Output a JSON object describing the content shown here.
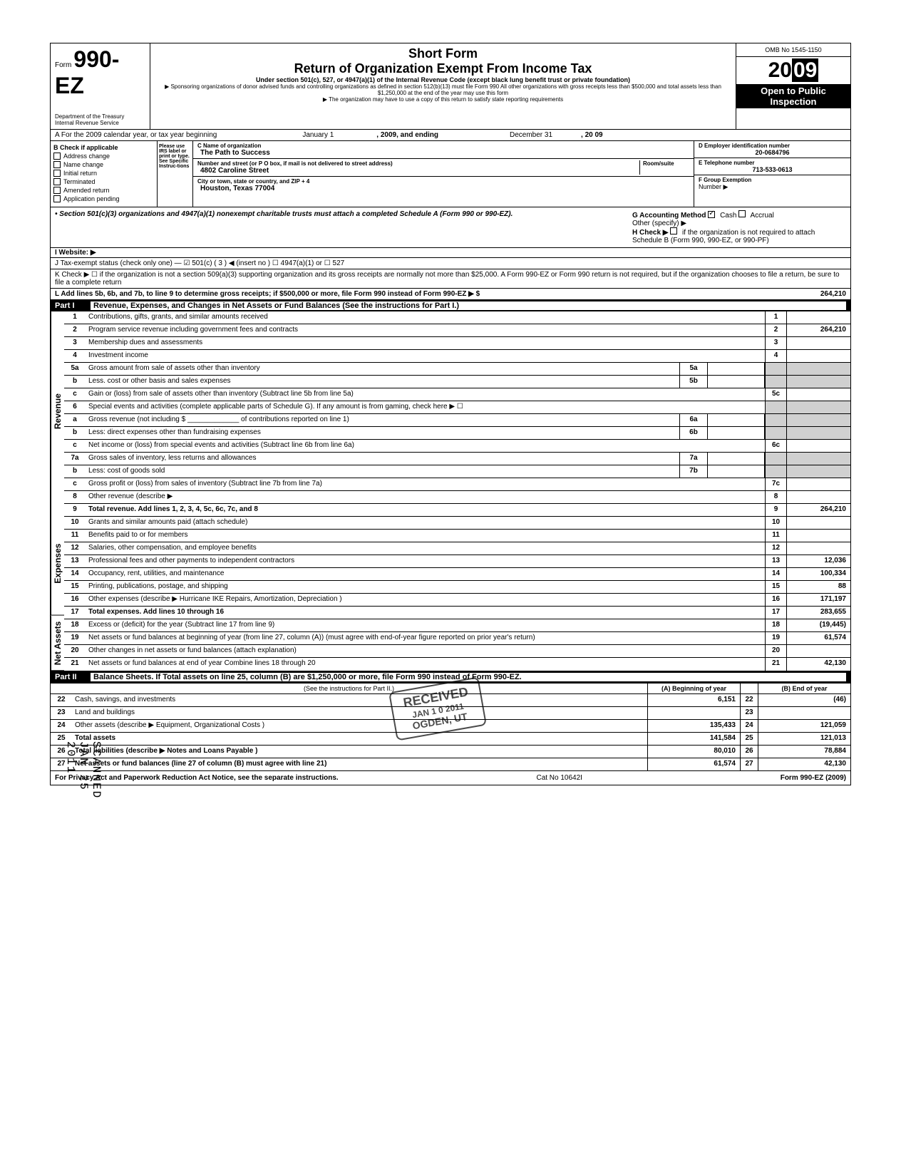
{
  "header": {
    "form_prefix": "Form",
    "form_number": "990-EZ",
    "dept": "Department of the Treasury",
    "irs": "Internal Revenue Service",
    "short_form": "Short Form",
    "title": "Return of Organization Exempt From Income Tax",
    "subtitle": "Under section 501(c), 527, or 4947(a)(1) of the Internal Revenue Code (except black lung benefit trust or private foundation)",
    "sponsor_text": "▶ Sponsoring organizations of donor advised funds and controlling organizations as defined in section 512(b)(13) must file Form 990  All other organizations with gross receipts less than $500,000 and total assets less than $1,250,000 at the end of the year may use this form",
    "copy_text": "▶ The organization may have to use a copy of this return to satisfy state reporting requirements",
    "omb": "OMB No 1545-1150",
    "year": "2009",
    "open": "Open to Public",
    "inspection": "Inspection"
  },
  "section_a": {
    "label": "A For the 2009 calendar year, or tax year beginning",
    "begin": "January 1",
    "mid": ", 2009, and ending",
    "end": "December 31",
    "end_year": ", 20   09"
  },
  "section_b": {
    "label": "B Check if applicable",
    "items": [
      "Address change",
      "Name change",
      "Initial return",
      "Terminated",
      "Amended return",
      "Application pending"
    ]
  },
  "please": "Please use IRS label or print or type. See Specific Instruc-tions",
  "section_c": {
    "name_label": "C Name of organization",
    "name": "The Path to Success",
    "addr_label": "Number and street (or P O  box, if mail is not delivered to street address)",
    "room": "Room/suite",
    "addr": "4802 Caroline Street",
    "city_label": "City or town, state or country, and ZIP + 4",
    "city": "Houston, Texas 77004"
  },
  "section_d": {
    "ein_label": "D Employer identification number",
    "ein": "20-0684796",
    "phone_label": "E Telephone number",
    "phone": "713-533-0613",
    "group_label": "F Group Exemption",
    "number": "Number ▶"
  },
  "section_501": {
    "text": "• Section 501(c)(3) organizations and 4947(a)(1) nonexempt charitable trusts must attach a completed Schedule A (Form 990 or 990-EZ).",
    "g_label": "G Accounting Method",
    "cash": "Cash",
    "accrual": "Accrual",
    "other": "Other (specify) ▶",
    "h_label": "H Check ▶",
    "h_text": "if the organization is not required to attach Schedule B (Form 990, 990-EZ, or 990-PF)"
  },
  "website": "I   Website: ▶",
  "line_j": "J  Tax-exempt status (check only one) — ☑ 501(c) (   3  ) ◀ (insert no )   ☐ 4947(a)(1) or   ☐ 527",
  "line_k": "K Check ▶ ☐    if the organization is not a section 509(a)(3) supporting organization and its gross receipts are normally not more than $25,000.  A Form 990-EZ or Form 990 return is not required,  but if the organization chooses to file a return, be sure to file a complete return",
  "line_l": {
    "text": "L  Add lines 5b, 6b, and 7b, to line 9 to determine gross receipts; if $500,000 or more, file Form 990 instead of Form 990-EZ   ▶  $",
    "amount": "264,210"
  },
  "part1": {
    "num": "Part I",
    "title": "Revenue, Expenses, and Changes in Net Assets or Fund Balances (See the instructions for Part I.)"
  },
  "revenue_label": "Revenue",
  "expenses_label": "Expenses",
  "netassets_label": "Net Assets",
  "lines": [
    {
      "n": "1",
      "d": "Contributions, gifts, grants, and similar amounts received",
      "rn": "1",
      "rv": ""
    },
    {
      "n": "2",
      "d": "Program service revenue including government fees and contracts",
      "rn": "2",
      "rv": "264,210"
    },
    {
      "n": "3",
      "d": "Membership dues and assessments",
      "rn": "3",
      "rv": ""
    },
    {
      "n": "4",
      "d": "Investment income",
      "rn": "4",
      "rv": ""
    },
    {
      "n": "5a",
      "d": "Gross amount from sale of assets other than inventory",
      "mn": "5a",
      "mv": ""
    },
    {
      "n": "b",
      "d": "Less. cost or other basis and sales expenses",
      "mn": "5b",
      "mv": ""
    },
    {
      "n": "c",
      "d": "Gain or (loss) from sale of assets other than inventory (Subtract line 5b from line 5a)",
      "rn": "5c",
      "rv": ""
    },
    {
      "n": "6",
      "d": "Special events and activities (complete applicable parts of Schedule G). If any amount is from gaming, check here ▶ ☐"
    },
    {
      "n": "a",
      "d": "Gross revenue (not including $ _____________ of contributions reported on line 1)",
      "mn": "6a",
      "mv": ""
    },
    {
      "n": "b",
      "d": "Less: direct expenses other than fundraising expenses",
      "mn": "6b",
      "mv": ""
    },
    {
      "n": "c",
      "d": "Net income or (loss) from special events and activities (Subtract line 6b from line 6a)",
      "rn": "6c",
      "rv": ""
    },
    {
      "n": "7a",
      "d": "Gross sales of inventory, less returns and allowances",
      "mn": "7a",
      "mv": ""
    },
    {
      "n": "b",
      "d": "Less: cost of goods sold",
      "mn": "7b",
      "mv": ""
    },
    {
      "n": "c",
      "d": "Gross profit or (loss) from sales of inventory (Subtract line 7b from line 7a)",
      "rn": "7c",
      "rv": ""
    },
    {
      "n": "8",
      "d": "Other revenue (describe ▶",
      "rn": "8",
      "rv": ""
    },
    {
      "n": "9",
      "d": "Total revenue. Add lines 1, 2, 3, 4, 5c, 6c, 7c, and 8",
      "rn": "9",
      "rv": "264,210",
      "bold": true
    }
  ],
  "exp_lines": [
    {
      "n": "10",
      "d": "Grants and similar amounts paid (attach schedule)",
      "rn": "10",
      "rv": ""
    },
    {
      "n": "11",
      "d": "Benefits paid to or for members",
      "rn": "11",
      "rv": ""
    },
    {
      "n": "12",
      "d": "Salaries, other compensation, and employee benefits",
      "rn": "12",
      "rv": ""
    },
    {
      "n": "13",
      "d": "Professional fees and other payments to independent contractors",
      "rn": "13",
      "rv": "12,036"
    },
    {
      "n": "14",
      "d": "Occupancy, rent, utilities, and maintenance",
      "rn": "14",
      "rv": "100,334"
    },
    {
      "n": "15",
      "d": "Printing, publications, postage, and shipping",
      "rn": "15",
      "rv": "88"
    },
    {
      "n": "16",
      "d": "Other expenses (describe ▶   Hurricane IKE Repairs, Amortization, Depreciation               )",
      "rn": "16",
      "rv": "171,197"
    },
    {
      "n": "17",
      "d": "Total expenses. Add lines 10 through 16",
      "rn": "17",
      "rv": "283,655",
      "bold": true
    }
  ],
  "na_lines": [
    {
      "n": "18",
      "d": "Excess or (deficit) for the year (Subtract line 17 from line 9)",
      "rn": "18",
      "rv": "(19,445)"
    },
    {
      "n": "19",
      "d": "Net assets or fund balances at beginning of year (from line 27, column (A)) (must agree with end-of-year figure reported on prior year's return)",
      "rn": "19",
      "rv": "61,574"
    },
    {
      "n": "20",
      "d": "Other changes in net assets or fund balances (attach explanation)",
      "rn": "20",
      "rv": ""
    },
    {
      "n": "21",
      "d": "Net assets or fund balances at end of year  Combine lines 18 through 20",
      "rn": "21",
      "rv": "42,130"
    }
  ],
  "part2": {
    "num": "Part II",
    "title": "Balance Sheets. If Total assets on line 25, column (B) are $1,250,000 or more, file Form 990 instead of Form 990-EZ.",
    "instr": "(See the instructions for Part II.)",
    "col_a": "(A) Beginning of year",
    "col_b": "(B) End of year"
  },
  "p2_lines": [
    {
      "n": "22",
      "d": "Cash, savings, and investments",
      "a": "6,151",
      "nn": "22",
      "b": "(46)"
    },
    {
      "n": "23",
      "d": "Land and buildings",
      "a": "",
      "nn": "23",
      "b": ""
    },
    {
      "n": "24",
      "d": "Other assets (describe ▶   Equipment, Organizational Costs                             )",
      "a": "135,433",
      "nn": "24",
      "b": "121,059"
    },
    {
      "n": "25",
      "d": "Total assets",
      "a": "141,584",
      "nn": "25",
      "b": "121,013",
      "bold": true
    },
    {
      "n": "26",
      "d": "Total liabilities (describe ▶    Notes and Loans Payable                                )",
      "a": "80,010",
      "nn": "26",
      "b": "78,884",
      "bold": true
    },
    {
      "n": "27",
      "d": "Net assets or fund balances (line 27 of column (B) must agree with line 21)",
      "a": "61,574",
      "nn": "27",
      "b": "42,130",
      "bold": true
    }
  ],
  "footer": {
    "left": "For Privacy Act and Paperwork Reduction Act Notice, see the separate instructions.",
    "mid": "Cat  No  10642I",
    "right": "Form 990-EZ (2009)"
  },
  "stamp": {
    "received": "RECEIVED",
    "date": "JAN 1 0 2011",
    "location": "OGDEN, UT"
  },
  "scanned": "SCANNED JAN 25 2011"
}
